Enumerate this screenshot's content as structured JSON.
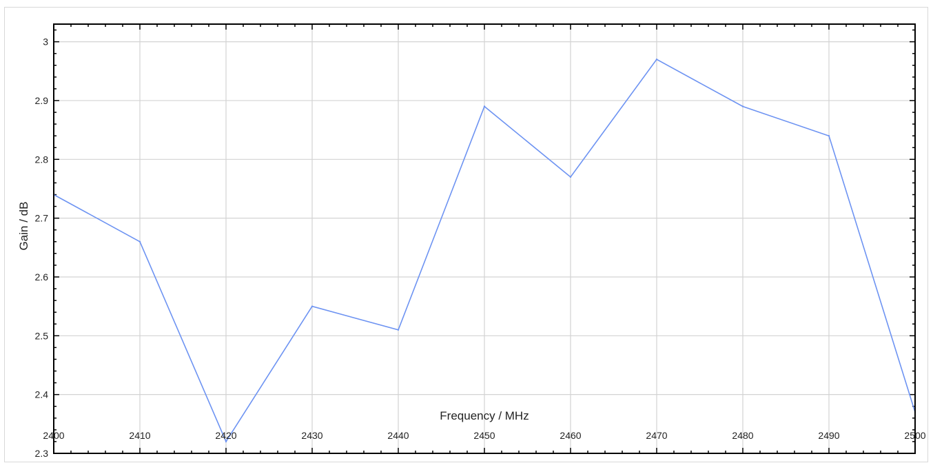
{
  "chart_data": {
    "type": "line",
    "title": "",
    "xlabel": "Frequency / MHz",
    "ylabel": "Gain / dB",
    "xlim": [
      2400,
      2500
    ],
    "ylim": [
      2.3,
      3.03
    ],
    "xticks": [
      2400,
      2410,
      2420,
      2430,
      2440,
      2450,
      2460,
      2470,
      2480,
      2490,
      2500
    ],
    "xtick_labels": [
      "2400",
      "2410",
      "2420",
      "2430",
      "2440",
      "2450",
      "2460",
      "2470",
      "2480",
      "2490",
      "2500"
    ],
    "yticks": [
      2.3,
      2.4,
      2.5,
      2.6,
      2.7,
      2.8,
      2.9,
      3.0
    ],
    "ytick_labels": [
      "2.3",
      "2.4",
      "2.5",
      "2.6",
      "2.7",
      "2.8",
      "2.9",
      "3"
    ],
    "grid": true,
    "series": [
      {
        "color": "#6d93f2",
        "x": [
          2400,
          2410,
          2420,
          2430,
          2440,
          2450,
          2460,
          2470,
          2480,
          2490,
          2500
        ],
        "y": [
          2.74,
          2.66,
          2.32,
          2.55,
          2.51,
          2.89,
          2.77,
          2.97,
          2.89,
          2.84,
          2.37
        ]
      }
    ]
  }
}
